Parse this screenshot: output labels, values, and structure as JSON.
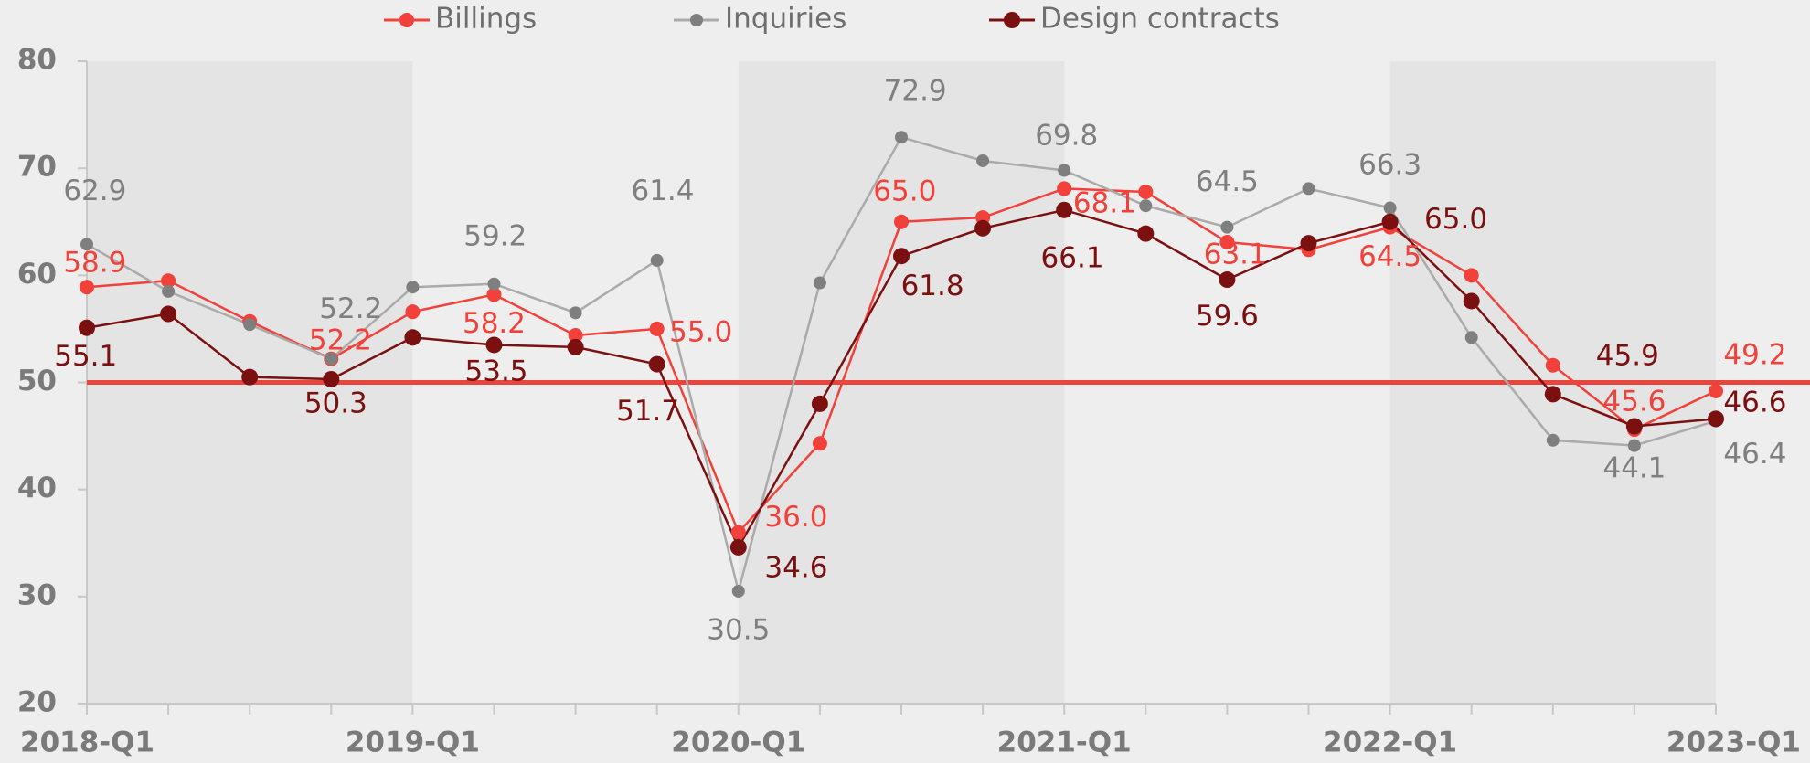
{
  "chart_data": {
    "type": "line",
    "categories": [
      "2018-Q1",
      null,
      null,
      null,
      "2019-Q1",
      null,
      null,
      null,
      "2020-Q1",
      null,
      null,
      null,
      "2021-Q1",
      null,
      null,
      null,
      "2022-Q1",
      null,
      null,
      null,
      "2023-Q1"
    ],
    "series": [
      {
        "name": "Billings",
        "color": "#f0413a",
        "values": [
          58.9,
          59.5,
          55.7,
          52.2,
          56.6,
          58.2,
          54.4,
          55.0,
          36.0,
          44.3,
          65.0,
          65.4,
          68.1,
          67.8,
          63.1,
          62.4,
          64.5,
          60.0,
          51.6,
          45.6,
          49.2
        ],
        "value_labels": [
          "58.9",
          null,
          null,
          "52.2",
          null,
          "58.2",
          null,
          "55.0",
          "36.0",
          null,
          "65.0",
          null,
          "68.1",
          null,
          "63.1",
          null,
          "64.5",
          null,
          null,
          "45.6",
          "49.2"
        ]
      },
      {
        "name": "Inquiries",
        "color": "#7f7f7f",
        "values": [
          62.9,
          58.5,
          55.4,
          52.2,
          58.9,
          59.2,
          56.5,
          61.4,
          30.5,
          59.3,
          72.9,
          70.7,
          69.8,
          66.5,
          64.5,
          68.1,
          66.3,
          54.2,
          44.6,
          44.1,
          46.4
        ],
        "value_labels": [
          "62.9",
          null,
          null,
          "52.2",
          null,
          "59.2",
          null,
          "61.4",
          "30.5",
          null,
          "72.9",
          null,
          "69.8",
          null,
          "64.5",
          null,
          "66.3",
          null,
          null,
          "44.1",
          "46.4"
        ]
      },
      {
        "name": "Design contracts",
        "color": "#7b1010",
        "values": [
          55.1,
          56.4,
          50.5,
          50.3,
          54.2,
          53.5,
          53.3,
          51.7,
          34.6,
          48.0,
          61.8,
          64.4,
          66.1,
          63.9,
          59.6,
          63.0,
          65.0,
          57.6,
          48.9,
          45.9,
          46.6
        ],
        "value_labels": [
          "55.1",
          null,
          null,
          "50.3",
          null,
          "53.5",
          null,
          "51.7",
          "34.6",
          null,
          "61.8",
          null,
          "66.1",
          null,
          "59.6",
          null,
          "65.0",
          null,
          null,
          "45.9",
          "46.6"
        ]
      }
    ],
    "ylim": [
      20,
      80
    ],
    "yticks": [
      20,
      30,
      40,
      50,
      60,
      70,
      80
    ],
    "reference_line": {
      "value": 50,
      "color": "#e8453c"
    },
    "legend": "top"
  }
}
